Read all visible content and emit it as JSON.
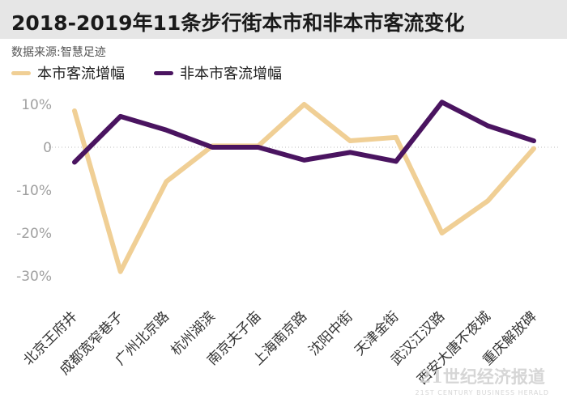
{
  "chart_data": {
    "type": "line",
    "title": "2018-2019年11条步行街本市和非本市客流变化",
    "source": "数据来源:智慧足迹",
    "categories": [
      "北京王府井",
      "成都宽窄巷子",
      "广州北京路",
      "杭州湖滨",
      "南京夫子庙",
      "上海南京路",
      "沈阳中街",
      "天津金街",
      "武汉江汉路",
      "西安大唐不夜城",
      "重庆解放碑"
    ],
    "series": [
      {
        "name": "本市客流增幅",
        "color": "#f0cf95",
        "values": [
          8.5,
          -29,
          -8,
          0.3,
          0.3,
          10,
          1.5,
          2.3,
          -20,
          -12.5,
          -0.3
        ]
      },
      {
        "name": "非本市客流增幅",
        "color": "#4a1460",
        "values": [
          -3.5,
          7.2,
          4,
          0,
          0,
          -3,
          -1.2,
          -3.3,
          10.5,
          5,
          1.5
        ]
      }
    ],
    "yticks": [
      10,
      0,
      -10,
      -20,
      -30
    ],
    "ytick_labels": [
      "10%",
      "0",
      "-10%",
      "-20%",
      "-30%"
    ],
    "ylim": [
      -32,
      12
    ],
    "zero_line": "dotted"
  },
  "watermark": {
    "main": "21世纪经济报道",
    "sub": "21ST CENTURY BUSINESS HERALD"
  }
}
